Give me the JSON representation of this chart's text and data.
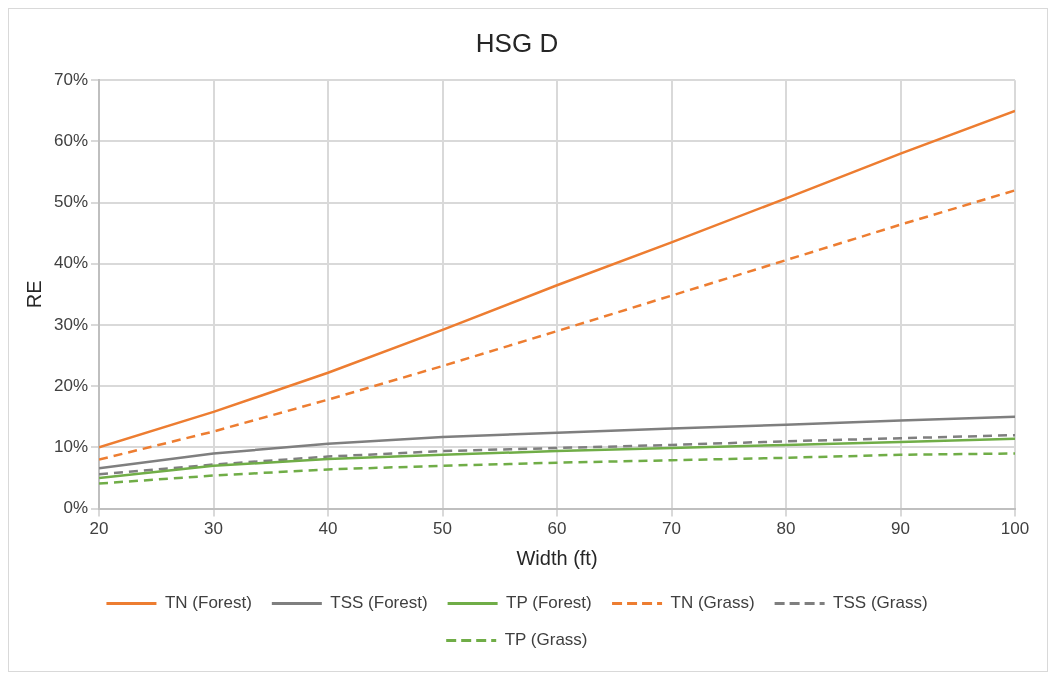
{
  "chart_data": {
    "type": "line",
    "title": "HSG D",
    "xlabel": "Width (ft)",
    "ylabel": "RE",
    "x": [
      20,
      30,
      40,
      50,
      60,
      70,
      80,
      90,
      100
    ],
    "xlim": [
      20,
      100
    ],
    "xticks": [
      20,
      30,
      40,
      50,
      60,
      70,
      80,
      90,
      100
    ],
    "ylim": [
      0,
      70
    ],
    "yticks": [
      {
        "value": 0,
        "label": "0%"
      },
      {
        "value": 10,
        "label": "10%"
      },
      {
        "value": 20,
        "label": "20%"
      },
      {
        "value": 30,
        "label": "30%"
      },
      {
        "value": 40,
        "label": "40%"
      },
      {
        "value": 50,
        "label": "50%"
      },
      {
        "value": 60,
        "label": "60%"
      },
      {
        "value": 70,
        "label": "70%"
      }
    ],
    "grid": true,
    "legend": "bottom",
    "marker": "none",
    "series": [
      {
        "name": "TN (Forest)",
        "color": "#ed7d31",
        "line_style": "solid",
        "values": [
          10,
          15.8,
          22.2,
          29.2,
          36.5,
          43.5,
          50.7,
          58,
          65
        ]
      },
      {
        "name": "TSS (Forest)",
        "color": "#7f7f7f",
        "line_style": "solid",
        "values": [
          6.6,
          9,
          10.6,
          11.7,
          12.4,
          13.1,
          13.7,
          14.4,
          15
        ]
      },
      {
        "name": "TP (Forest)",
        "color": "#70ad47",
        "line_style": "solid",
        "values": [
          5,
          7,
          8.1,
          8.8,
          9.4,
          9.9,
          10.4,
          10.9,
          11.4
        ]
      },
      {
        "name": "TN (Grass)",
        "color": "#ed7d31",
        "line_style": "dashed",
        "values": [
          8,
          12.6,
          17.8,
          23.3,
          29,
          34.8,
          40.6,
          46.4,
          52
        ]
      },
      {
        "name": "TSS (Grass)",
        "color": "#7f7f7f",
        "line_style": "dashed",
        "values": [
          5.6,
          7.2,
          8.5,
          9.4,
          9.9,
          10.4,
          11,
          11.5,
          12
        ]
      },
      {
        "name": "TP (Grass)",
        "color": "#70ad47",
        "line_style": "dashed",
        "values": [
          4.1,
          5.4,
          6.4,
          7,
          7.5,
          7.9,
          8.3,
          8.8,
          9
        ]
      }
    ]
  }
}
